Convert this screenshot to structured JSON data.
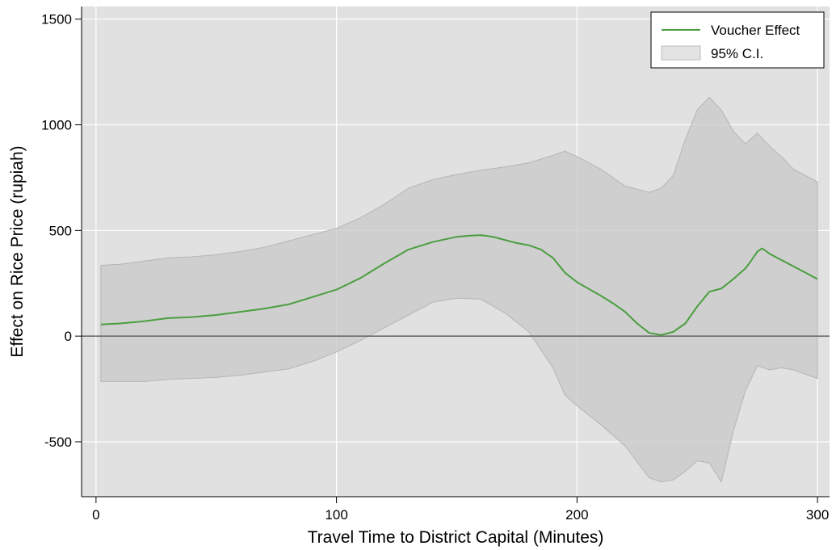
{
  "chart_data": {
    "type": "line",
    "title": "",
    "xlabel": "Travel Time to District Capital (Minutes)",
    "ylabel": "Effect on Rice Price (rupiah)",
    "xlim": [
      -6,
      305
    ],
    "ylim": [
      -760,
      1560
    ],
    "xticks": [
      0,
      100,
      200,
      300
    ],
    "yticks": [
      -500,
      0,
      500,
      1000,
      1500
    ],
    "grid": true,
    "zero_line": true,
    "legend_position": "top-right",
    "colors": {
      "line": "#4a9e3f",
      "band": "#c8c8c8",
      "plot_background": "#e1e1e1",
      "grid": "#ffffff",
      "zero_line": "#6b6b6b"
    },
    "series": [
      {
        "name": "Voucher Effect",
        "x": [
          2,
          10,
          20,
          30,
          40,
          50,
          60,
          70,
          80,
          90,
          100,
          110,
          120,
          130,
          140,
          150,
          155,
          160,
          165,
          170,
          175,
          180,
          185,
          190,
          195,
          200,
          210,
          215,
          220,
          225,
          230,
          235,
          240,
          245,
          250,
          255,
          260,
          265,
          270,
          272,
          275,
          277,
          280,
          285,
          290,
          300
        ],
        "y": [
          55,
          60,
          70,
          85,
          90,
          100,
          115,
          130,
          150,
          185,
          220,
          275,
          345,
          410,
          445,
          470,
          475,
          478,
          470,
          455,
          440,
          430,
          410,
          370,
          300,
          255,
          190,
          155,
          115,
          60,
          15,
          5,
          20,
          60,
          140,
          210,
          225,
          270,
          320,
          350,
          400,
          415,
          390,
          360,
          330,
          270
        ]
      },
      {
        "name": "95% C.I.",
        "x": [
          2,
          10,
          20,
          30,
          40,
          50,
          60,
          70,
          80,
          90,
          100,
          110,
          120,
          130,
          140,
          150,
          160,
          170,
          180,
          190,
          195,
          200,
          210,
          220,
          230,
          235,
          240,
          245,
          250,
          255,
          260,
          265,
          270,
          275,
          280,
          285,
          290,
          300
        ],
        "upper": [
          335,
          340,
          355,
          370,
          375,
          385,
          400,
          420,
          450,
          480,
          510,
          560,
          625,
          700,
          740,
          765,
          785,
          800,
          820,
          855,
          875,
          850,
          790,
          710,
          680,
          700,
          760,
          930,
          1070,
          1130,
          1070,
          970,
          910,
          960,
          900,
          850,
          790,
          730
        ],
        "lower": [
          -215,
          -215,
          -215,
          -205,
          -200,
          -195,
          -185,
          -170,
          -155,
          -120,
          -75,
          -20,
          40,
          100,
          160,
          180,
          175,
          110,
          20,
          -150,
          -280,
          -330,
          -420,
          -520,
          -670,
          -690,
          -680,
          -640,
          -590,
          -600,
          -690,
          -450,
          -260,
          -140,
          -160,
          -150,
          -160,
          -200
        ]
      }
    ]
  }
}
